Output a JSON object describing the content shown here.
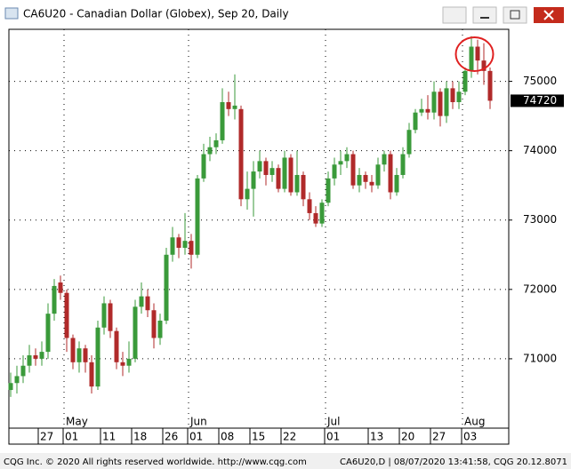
{
  "chart_data": {
    "type": "candlestick",
    "title": "CA6U20 - Canadian Dollar (Globex), Sep 20, Daily",
    "categories": [
      null,
      null,
      null,
      null,
      null,
      "27",
      null,
      null,
      null,
      "01",
      null,
      null,
      null,
      null,
      null,
      "11",
      null,
      null,
      null,
      null,
      "18",
      null,
      null,
      null,
      null,
      "26",
      null,
      null,
      null,
      "01",
      null,
      null,
      null,
      null,
      "08",
      null,
      null,
      null,
      null,
      "15",
      null,
      null,
      null,
      null,
      "22",
      null,
      null,
      null,
      null,
      null,
      null,
      "01",
      null,
      null,
      null,
      null,
      null,
      null,
      "13",
      null,
      null,
      null,
      null,
      "20",
      null,
      null,
      null,
      null,
      "27",
      null,
      null,
      null,
      null,
      "03",
      null,
      null,
      null,
      null
    ],
    "months": [
      null,
      null,
      null,
      null,
      null,
      null,
      null,
      null,
      null,
      "May",
      null,
      null,
      null,
      null,
      null,
      null,
      null,
      null,
      null,
      null,
      null,
      null,
      null,
      null,
      null,
      null,
      null,
      null,
      null,
      "Jun",
      null,
      null,
      null,
      null,
      null,
      null,
      null,
      null,
      null,
      null,
      null,
      null,
      null,
      null,
      null,
      null,
      null,
      null,
      null,
      null,
      null,
      "Jul",
      null,
      null,
      null,
      null,
      null,
      null,
      null,
      null,
      null,
      null,
      null,
      null,
      null,
      null,
      null,
      null,
      null,
      null,
      null,
      null,
      null,
      "Aug",
      null,
      null,
      null,
      null
    ],
    "open": [
      70550,
      70650,
      70750,
      70900,
      71050,
      71000,
      71100,
      71650,
      72100,
      71950,
      71300,
      70950,
      71150,
      70950,
      70600,
      71450,
      71800,
      71400,
      70950,
      70900,
      71000,
      71750,
      71900,
      71700,
      71300,
      71550,
      72500,
      72750,
      72600,
      72700,
      72500,
      73600,
      73950,
      74050,
      74150,
      74700,
      74600,
      74600,
      73300,
      73450,
      73700,
      73850,
      73650,
      73750,
      73450,
      73900,
      73400,
      73650,
      73300,
      73100,
      72950,
      73250,
      73600,
      73800,
      73850,
      73950,
      73500,
      73650,
      73550,
      73500,
      73800,
      73950,
      73400,
      73650,
      73950,
      74300,
      74550,
      74600,
      74550,
      74850,
      74500,
      74900,
      74700,
      74850,
      75150,
      75500,
      75300,
      75150
    ],
    "high": [
      70800,
      70900,
      71050,
      71200,
      71150,
      71250,
      71800,
      72150,
      72200,
      72000,
      71350,
      71250,
      71200,
      71050,
      71550,
      71900,
      71850,
      71450,
      71100,
      71250,
      71850,
      72100,
      72000,
      71800,
      71650,
      72600,
      72900,
      72800,
      73100,
      72800,
      73650,
      74100,
      74200,
      74250,
      74900,
      74850,
      75100,
      74650,
      73700,
      73850,
      74000,
      73900,
      73850,
      73800,
      74000,
      73950,
      74000,
      73700,
      73400,
      73200,
      73300,
      73700,
      73900,
      74000,
      74050,
      74000,
      73750,
      73700,
      73650,
      73900,
      74000,
      74000,
      73750,
      74050,
      74400,
      74600,
      74750,
      74800,
      75000,
      74900,
      75000,
      75000,
      75000,
      75200,
      75650,
      75600,
      75550,
      75200
    ],
    "low": [
      70450,
      70500,
      70650,
      70800,
      70900,
      70900,
      71000,
      71550,
      71850,
      71100,
      70850,
      70800,
      70800,
      70500,
      70550,
      71350,
      71300,
      70850,
      70750,
      70800,
      70950,
      71650,
      71600,
      71150,
      71200,
      71500,
      72400,
      72450,
      72500,
      72300,
      72450,
      73550,
      73850,
      73950,
      74100,
      74500,
      74450,
      73200,
      73150,
      73050,
      73600,
      73500,
      73550,
      73400,
      73400,
      73350,
      73350,
      73200,
      73000,
      72900,
      72900,
      73200,
      73500,
      73650,
      73750,
      73450,
      73400,
      73450,
      73400,
      73450,
      73700,
      73300,
      73350,
      73600,
      73900,
      74250,
      74500,
      74450,
      74450,
      74350,
      74400,
      74600,
      74600,
      74800,
      75050,
      75100,
      74950,
      74600
    ],
    "close": [
      70650,
      70750,
      70900,
      71050,
      71000,
      71100,
      71650,
      72050,
      71950,
      71300,
      70950,
      71150,
      70950,
      70600,
      71450,
      71800,
      71400,
      70950,
      70900,
      71000,
      71750,
      71900,
      71700,
      71300,
      71550,
      72500,
      72750,
      72600,
      72700,
      72500,
      73600,
      73950,
      74050,
      74150,
      74700,
      74600,
      74650,
      73300,
      73450,
      73700,
      73850,
      73650,
      73750,
      73450,
      73900,
      73400,
      73650,
      73300,
      73100,
      72950,
      73250,
      73600,
      73800,
      73850,
      73950,
      73500,
      73650,
      73550,
      73500,
      73800,
      73950,
      73400,
      73650,
      73950,
      74300,
      74550,
      74600,
      74550,
      74850,
      74500,
      74900,
      74700,
      74850,
      75150,
      75500,
      75300,
      75150,
      74720
    ],
    "up_color": "#3a9a3a",
    "down_color": "#b02a2a",
    "ylim": [
      70000,
      75750
    ],
    "yticks": [
      71000,
      72000,
      73000,
      74000,
      75000
    ],
    "grid": true
  },
  "footer": {
    "left": "CQG Inc. © 2020 All rights reserved worldwide. http://www.cqg.com",
    "right": "CA6U20,D | 08/07/2020 13:41:58, CQG 20.12.8071"
  }
}
